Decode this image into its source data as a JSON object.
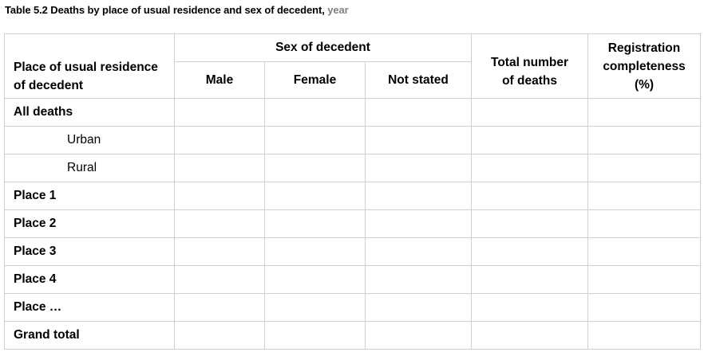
{
  "caption": {
    "title": "Table 5.2 Deaths by place of usual residence and sex of decedent,",
    "year_label": "year"
  },
  "table": {
    "header": {
      "place_line1": "Place of usual residence",
      "place_line2": "of decedent",
      "sex_group": "Sex of decedent",
      "male": "Male",
      "female": "Female",
      "not_stated": "Not stated",
      "total_line1": "Total number",
      "total_line2": "of deaths",
      "reg_line1": "Registration",
      "reg_line2": "completeness",
      "reg_line3": "(%)"
    },
    "rows": [
      {
        "label": "All deaths"
      },
      {
        "label": "Urban"
      },
      {
        "label": "Rural"
      },
      {
        "label": "Place 1"
      },
      {
        "label": "Place 2"
      },
      {
        "label": "Place 3"
      },
      {
        "label": "Place 4"
      },
      {
        "label": "Place …"
      },
      {
        "label": "Grand total"
      }
    ]
  }
}
